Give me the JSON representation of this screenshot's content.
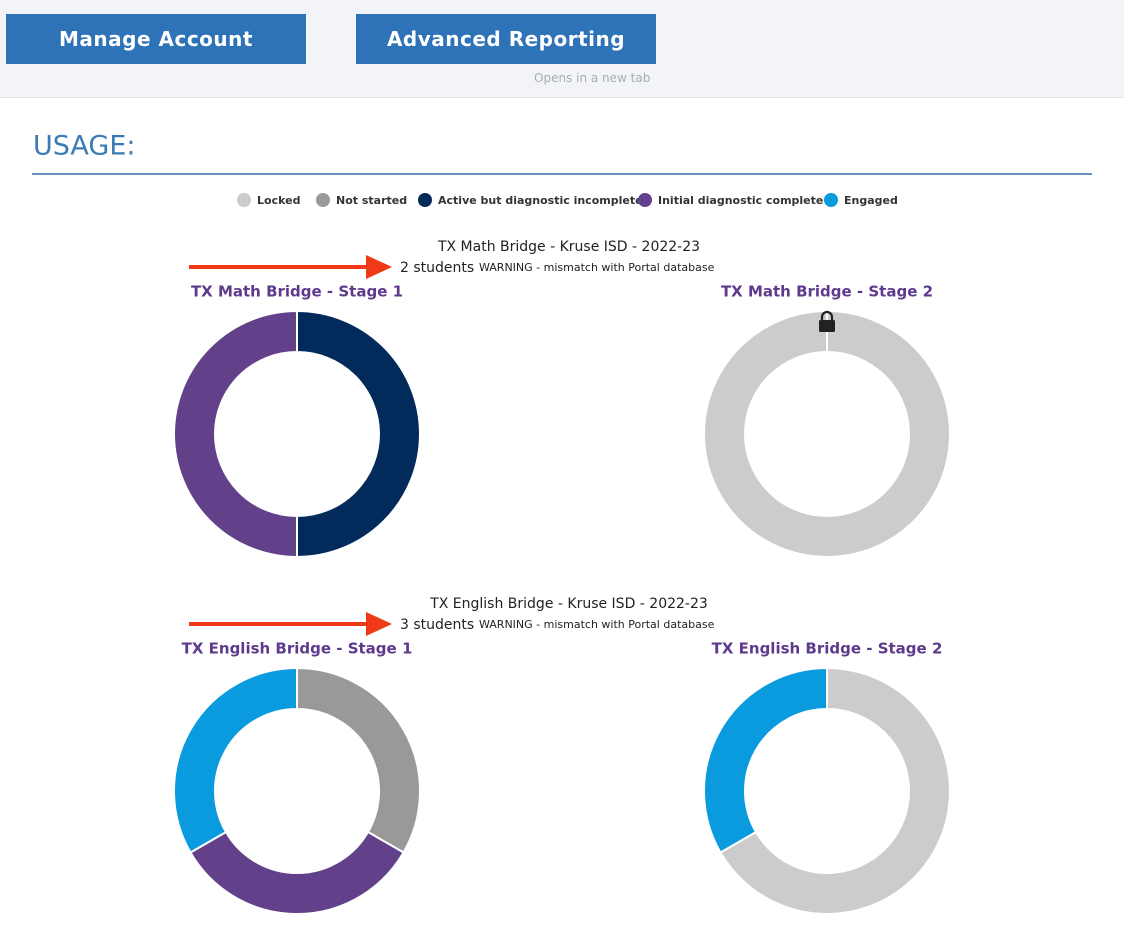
{
  "header": {
    "buttons": [
      "Manage Account",
      "Advanced Reporting"
    ],
    "note": "Opens in a new tab"
  },
  "usage": {
    "title": "USAGE:",
    "legend": [
      {
        "label": "Locked",
        "color": "#cccccc"
      },
      {
        "label": "Not started",
        "color": "#999999"
      },
      {
        "label": "Active but diagnostic incomplete",
        "color": "#022b5b"
      },
      {
        "label": "Initial diagnostic complete",
        "color": "#63418a"
      },
      {
        "label": "Engaged",
        "color": "#0a9bde"
      }
    ],
    "sections": [
      {
        "title": "TX Math Bridge - Kruse ISD - 2022-23",
        "students": "2 students",
        "warning": "WARNING - mismatch with Portal database",
        "charts": [
          {
            "title": "TX Math Bridge - Stage 1",
            "values": [
              0,
              0,
              1,
              1,
              0
            ]
          },
          {
            "title": "TX Math Bridge - Stage 2",
            "values": [
              2,
              0,
              0,
              0,
              0
            ]
          }
        ]
      },
      {
        "title": "TX English Bridge - Kruse ISD - 2022-23",
        "students": "3 students",
        "warning": "WARNING - mismatch with Portal database",
        "charts": [
          {
            "title": "TX English Bridge - Stage 1",
            "values": [
              0,
              1,
              0,
              1,
              1
            ]
          },
          {
            "title": "TX English Bridge - Stage 2",
            "values": [
              2,
              0,
              0,
              0,
              1
            ]
          }
        ]
      }
    ]
  }
}
